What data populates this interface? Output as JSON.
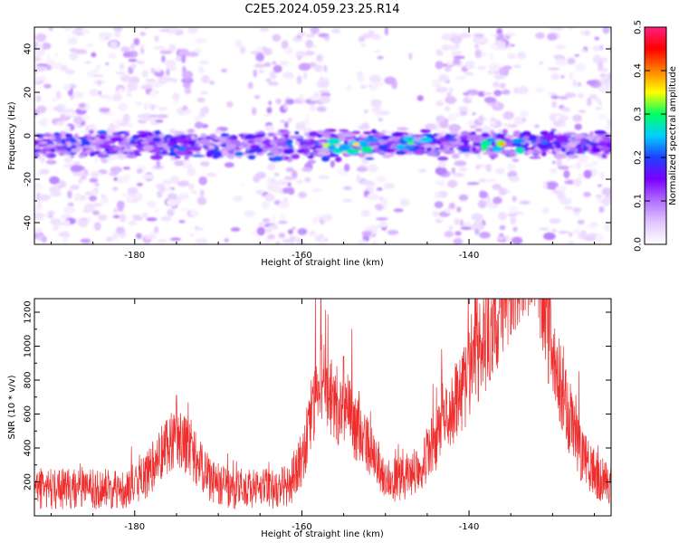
{
  "chart_data": [
    {
      "type": "heatmap",
      "title": "C2E5.2024.059.23.25.R14",
      "xlabel": "Height of straight line (km)",
      "ylabel": "Frequency (Hz)",
      "xlim": [
        -192,
        -123
      ],
      "ylim": [
        -50,
        50
      ],
      "x_ticks": [
        -180,
        -160,
        -140
      ],
      "y_ticks": [
        -40,
        -20,
        0,
        20,
        40
      ],
      "colorbar": {
        "label": "Normalized spectral amplitude",
        "range": [
          0,
          0.5
        ],
        "ticks": [
          0,
          0.1,
          0.2,
          0.3,
          0.4,
          0.5
        ],
        "colors": [
          "#ffffff",
          "#e3c7ff",
          "#b070ff",
          "#7a00ff",
          "#2040ff",
          "#00d0ff",
          "#00ff60",
          "#ffff00",
          "#ff8000",
          "#ff0000",
          "#ff2080"
        ]
      },
      "band": {
        "center_hz": -4,
        "halfwidth_hz": 7
      },
      "hotspots": [
        {
          "x": -175,
          "f": -5,
          "amp": 0.2
        },
        {
          "x": -155,
          "f": -5,
          "amp": 0.42
        },
        {
          "x": -153.5,
          "f": -4,
          "amp": 0.36
        },
        {
          "x": -147,
          "f": -3,
          "amp": 0.3
        },
        {
          "x": -136,
          "f": -4,
          "amp": 0.38
        },
        {
          "x": -131,
          "f": -3,
          "amp": 0.22
        },
        {
          "x": -125,
          "f": -4,
          "amp": 0.18
        }
      ],
      "quiet_zones": [
        [
          -171.5,
          -166
        ],
        [
          -157,
          -153
        ],
        [
          -150,
          -144
        ],
        [
          -134,
          -130
        ]
      ]
    },
    {
      "type": "line",
      "xlabel": "Height of straight line (km)",
      "ylabel": "SNR (10 * v/v)",
      "xlim": [
        -192,
        -123
      ],
      "ylim": [
        0,
        1280
      ],
      "x_ticks": [
        -180,
        -160,
        -140
      ],
      "y_ticks": [
        200,
        400,
        600,
        800,
        1000,
        1200
      ],
      "color": "#ee2d2d",
      "baseline": 160,
      "noise": 140,
      "peaks": [
        {
          "x": -175,
          "snr": 710,
          "width": 1.0
        },
        {
          "x": -158,
          "snr": 790,
          "width": 0.6
        },
        {
          "x": -155,
          "snr": 940,
          "width": 1.2
        },
        {
          "x": -141,
          "snr": 590,
          "width": 1.5
        },
        {
          "x": -137.5,
          "snr": 800,
          "width": 2.0
        },
        {
          "x": -135,
          "snr": 1070,
          "width": 1.4
        },
        {
          "x": -132.5,
          "snr": 1260,
          "width": 1.0
        },
        {
          "x": -130.5,
          "snr": 780,
          "width": 1.5
        }
      ]
    }
  ]
}
